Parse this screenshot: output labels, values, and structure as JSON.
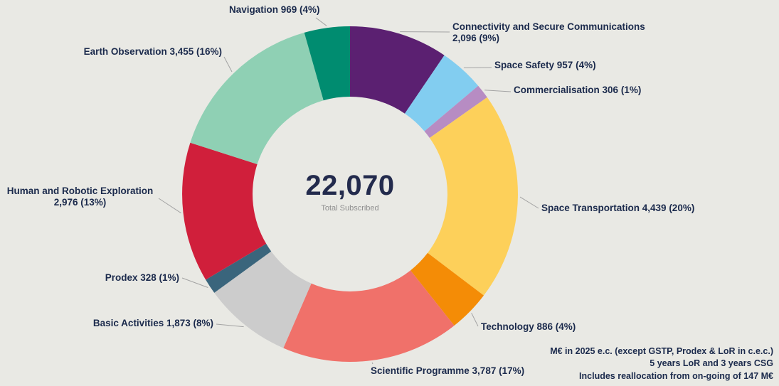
{
  "colors": {
    "background": "#e9e9e4",
    "label_text": "#1b2a4c",
    "center_text": "#232b4d",
    "subtitle_text": "#8f8f8f",
    "leader_line": "#a3a3a3"
  },
  "chart_data": {
    "type": "pie",
    "subtype": "donut",
    "direction": "clockwise",
    "start_angle_deg": 0,
    "total_value": 22070,
    "total_label": "22,070",
    "center_subtitle": "Total Subscribed",
    "slices": [
      {
        "key": "connectivity",
        "name": "Connectivity and Secure Communications",
        "value": 2096,
        "pct": "9%",
        "label": "Connectivity and Secure Communications\n2,096 (9%)",
        "color": "#5b2071"
      },
      {
        "key": "space-safety",
        "name": "Space Safety",
        "value": 957,
        "pct": "4%",
        "label": "Space Safety 957 (4%)",
        "color": "#82cdf0"
      },
      {
        "key": "commercialisation",
        "name": "Commercialisation",
        "value": 306,
        "pct": "1%",
        "label": "Commercialisation 306 (1%)",
        "color": "#b78cc3"
      },
      {
        "key": "space-transportation",
        "name": "Space Transportation",
        "value": 4439,
        "pct": "20%",
        "label": "Space Transportation 4,439 (20%)",
        "color": "#fdd05a"
      },
      {
        "key": "technology",
        "name": "Technology",
        "value": 886,
        "pct": "4%",
        "label": "Technology 886 (4%)",
        "color": "#f48c06"
      },
      {
        "key": "scientific-programme",
        "name": "Scientific Programme",
        "value": 3787,
        "pct": "17%",
        "label": "Scientific Programme 3,787 (17%)",
        "color": "#f0716a"
      },
      {
        "key": "basic-activities",
        "name": "Basic Activities",
        "value": 1873,
        "pct": "8%",
        "label": "Basic Activities 1,873 (8%)",
        "color": "#cccccc"
      },
      {
        "key": "prodex",
        "name": "Prodex",
        "value": 328,
        "pct": "1%",
        "label": "Prodex 328 (1%)",
        "color": "#3a657c"
      },
      {
        "key": "human-and-robotic-exploration",
        "name": "Human and Robotic Exploration",
        "value": 2976,
        "pct": "13%",
        "label": "Human and Robotic Exploration\n2,976 (13%)",
        "color": "#d01f3b"
      },
      {
        "key": "earth-observation",
        "name": "Earth Observation",
        "value": 3455,
        "pct": "16%",
        "label": "Earth Observation 3,455 (16%)",
        "color": "#8fd0b4"
      },
      {
        "key": "navigation",
        "name": "Navigation",
        "value": 969,
        "pct": "4%",
        "label": "Navigation 969 (4%)",
        "color": "#008c70"
      }
    ],
    "footnotes": [
      "M€ in 2025 e.c. (except GSTP, Prodex & LoR in c.e.c.)",
      "5 years LoR and 3 years CSG",
      "Includes reallocation from on-going of 147 M€"
    ]
  }
}
